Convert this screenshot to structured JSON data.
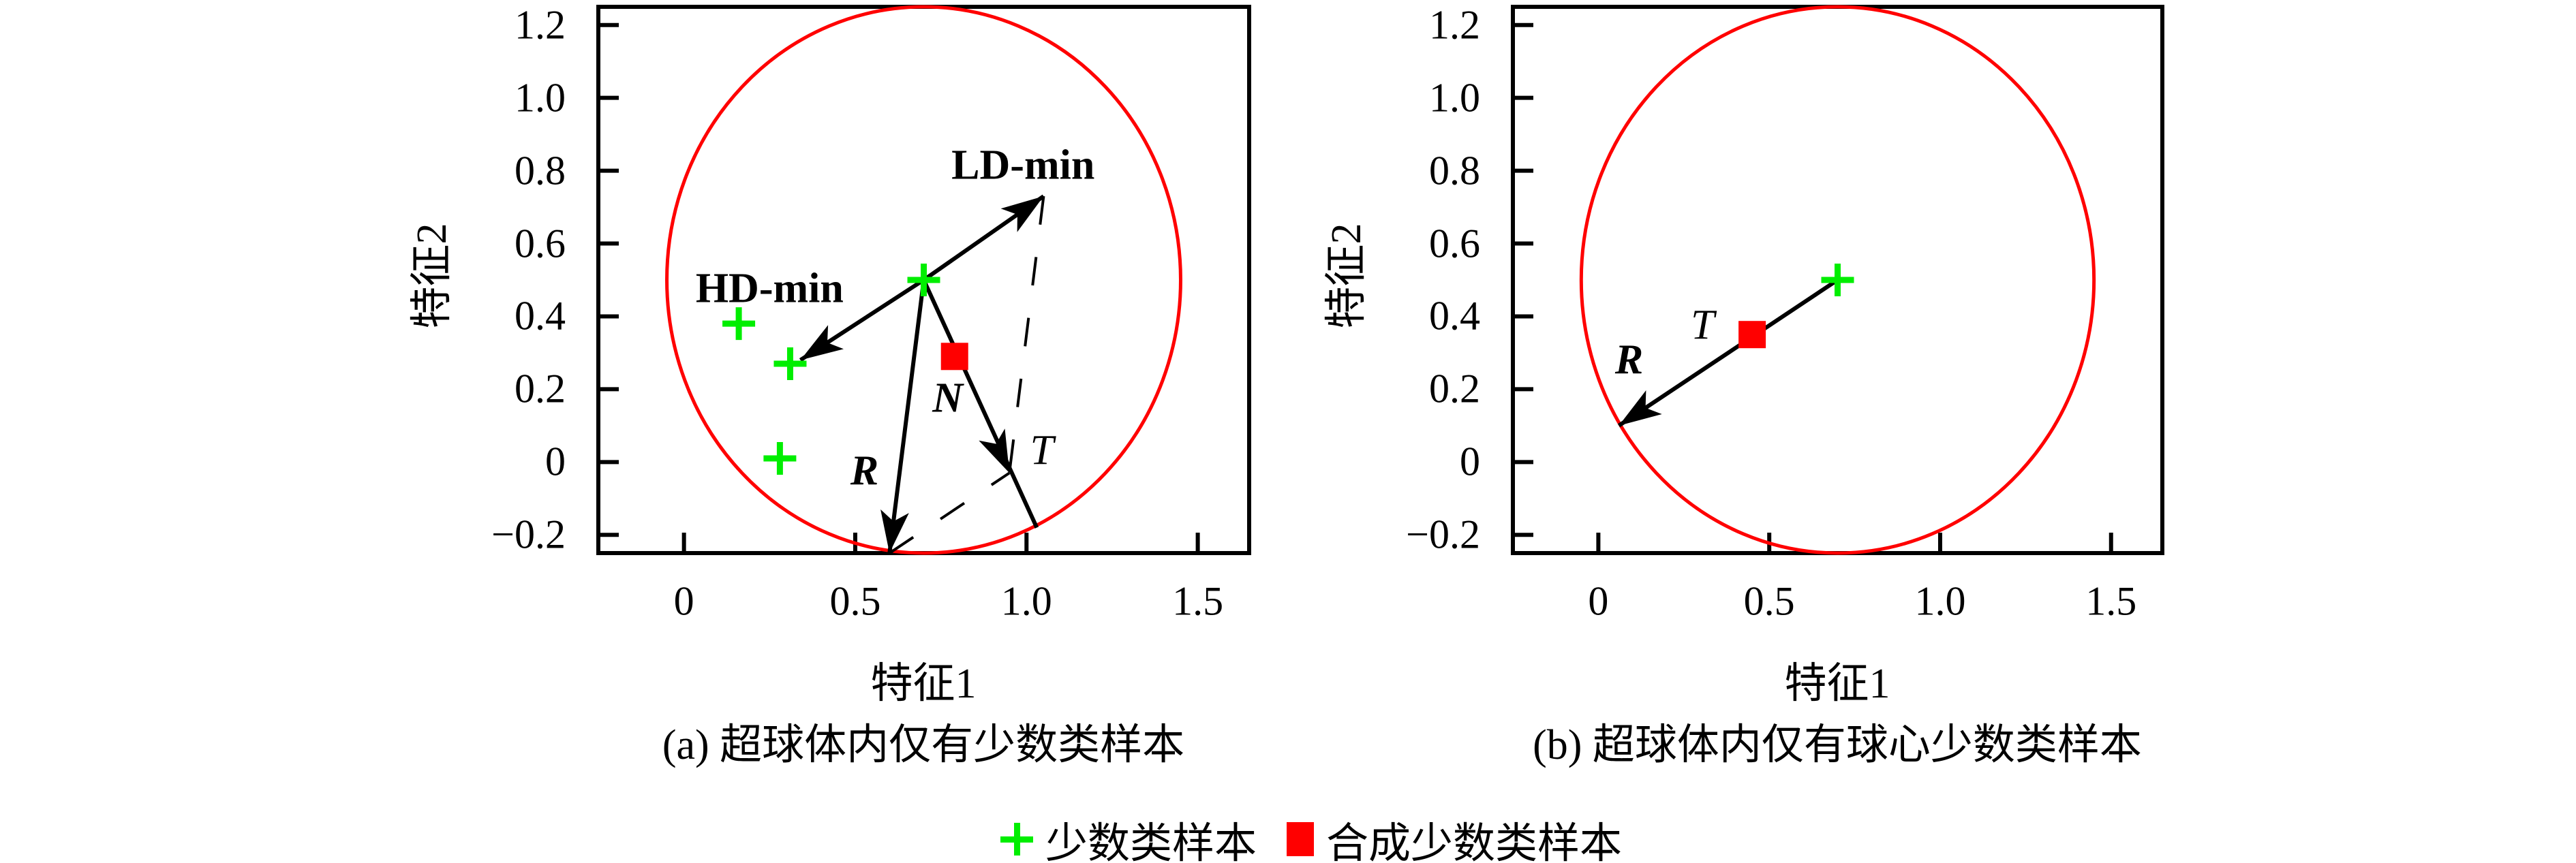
{
  "figure": {
    "background": "#ffffff",
    "colors": {
      "minority_marker": "#00ee00",
      "synthetic_marker": "#ff0000",
      "hypersphere": "#ff0000",
      "axis": "#000000"
    },
    "legend": [
      {
        "marker": "green-plus",
        "color": "#00ee00",
        "label": "少数类样本"
      },
      {
        "marker": "red-square",
        "color": "#ff0000",
        "label": "合成少数类样本"
      }
    ]
  },
  "chart_data": [
    {
      "type": "scatter",
      "id": "a",
      "caption": "(a) 超球体内仅有少数类样本",
      "xlabel": "特征1",
      "ylabel": "特征2",
      "xlim": [
        -0.25,
        1.65
      ],
      "ylim": [
        -0.25,
        1.25
      ],
      "xticks": [
        0,
        0.5,
        1.0,
        1.5
      ],
      "xtick_labels": [
        "0",
        "0.5",
        "1.0",
        "1.5"
      ],
      "yticks": [
        1.2,
        1.0,
        0.8,
        0.6,
        0.4,
        0.2,
        0,
        -0.2
      ],
      "ytick_labels": [
        "1.2",
        "1.0",
        "0.8",
        "0.6",
        "0.4",
        "0.2",
        "0",
        "−0.2"
      ],
      "grid": false,
      "hypersphere": {
        "cx": 0.7,
        "cy": 0.5,
        "r": 0.75,
        "color": "#ff0000"
      },
      "minority_points": [
        [
          0.16,
          0.38
        ],
        [
          0.31,
          0.27
        ],
        [
          0.28,
          0.01
        ],
        [
          0.7,
          0.5
        ]
      ],
      "synthetic_points": [
        [
          0.79,
          0.29
        ]
      ],
      "arrows": [
        {
          "name": "ld-min-arrow",
          "from": [
            0.7,
            0.5
          ],
          "to": [
            1.05,
            0.73
          ]
        },
        {
          "name": "hd-min-arrow",
          "from": [
            0.7,
            0.5
          ],
          "to": [
            0.34,
            0.28
          ]
        },
        {
          "name": "radius-arrow-r",
          "from": [
            0.7,
            0.5
          ],
          "to": [
            0.6,
            -0.25
          ]
        },
        {
          "name": "t-arrow",
          "from": [
            0.7,
            0.5
          ],
          "to": [
            1.03,
            -0.18
          ],
          "head_at": [
            0.95,
            -0.03
          ]
        }
      ],
      "dashed_lines": [
        {
          "name": "dash-ldmin-to-t",
          "from": [
            1.05,
            0.73
          ],
          "to": [
            0.95,
            -0.03
          ]
        },
        {
          "name": "dash-r-to-t",
          "from": [
            0.6,
            -0.25
          ],
          "to": [
            0.95,
            -0.03
          ]
        }
      ],
      "annotations": [
        {
          "text": "LD-min",
          "x": 0.99,
          "y": 0.815,
          "bold": true,
          "italic": false
        },
        {
          "text": "HD-min",
          "x": 0.25,
          "y": 0.475,
          "bold": true,
          "italic": false
        },
        {
          "text": "N",
          "x": 0.77,
          "y": 0.175,
          "bold": true,
          "italic": true
        },
        {
          "text": "R",
          "x": 0.527,
          "y": -0.025,
          "bold": true,
          "italic": true
        },
        {
          "text": "T",
          "x": 1.045,
          "y": 0.03,
          "bold": false,
          "italic": true
        }
      ]
    },
    {
      "type": "scatter",
      "id": "b",
      "caption": "(b) 超球体内仅有球心少数类样本",
      "xlabel": "特征1",
      "ylabel": "特征2",
      "xlim": [
        -0.25,
        1.65
      ],
      "ylim": [
        -0.25,
        1.25
      ],
      "xticks": [
        0,
        0.5,
        1.0,
        1.5
      ],
      "xtick_labels": [
        "0",
        "0.5",
        "1.0",
        "1.5"
      ],
      "yticks": [
        1.2,
        1.0,
        0.8,
        0.6,
        0.4,
        0.2,
        0,
        -0.2
      ],
      "ytick_labels": [
        "1.2",
        "1.0",
        "0.8",
        "0.6",
        "0.4",
        "0.2",
        "0",
        "−0.2"
      ],
      "grid": false,
      "hypersphere": {
        "cx": 0.7,
        "cy": 0.5,
        "r": 0.75,
        "color": "#ff0000"
      },
      "minority_points": [
        [
          0.7,
          0.5
        ]
      ],
      "synthetic_points": [
        [
          0.45,
          0.35
        ]
      ],
      "arrows": [
        {
          "name": "radius-arrow-r",
          "from": [
            0.7,
            0.5
          ],
          "to": [
            0.06,
            0.1
          ]
        }
      ],
      "dashed_lines": [],
      "annotations": [
        {
          "text": "T",
          "x": 0.305,
          "y": 0.375,
          "bold": false,
          "italic": true
        },
        {
          "text": "R",
          "x": 0.09,
          "y": 0.28,
          "bold": true,
          "italic": true
        }
      ]
    }
  ]
}
